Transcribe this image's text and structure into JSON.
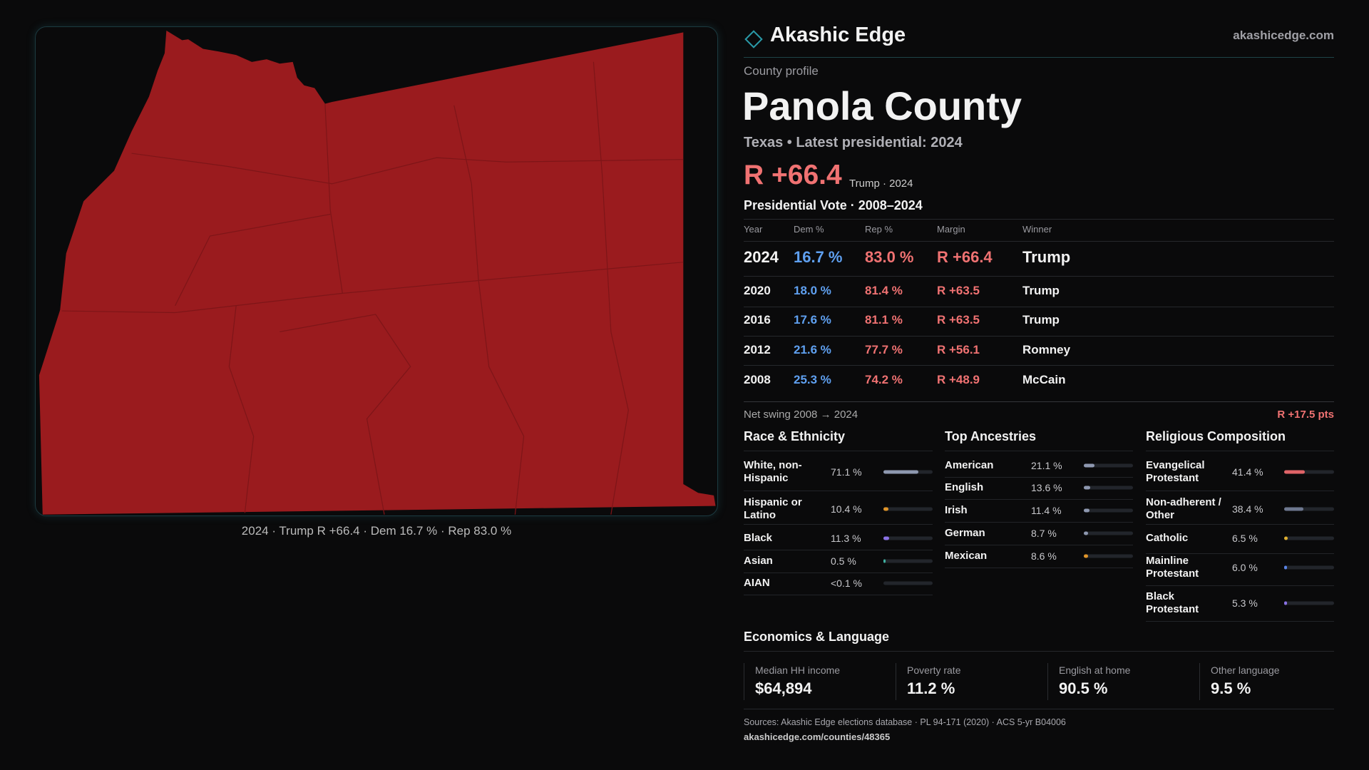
{
  "brand": {
    "name": "Akashic Edge",
    "url": "akashicedge.com"
  },
  "map": {
    "caption": "2024 · Trump R +66.4 · Dem 16.7 % · Rep 83.0 %"
  },
  "profile": {
    "kicker": "County profile",
    "title": "Panola County",
    "subtitle": "Texas • Latest presidential: 2024",
    "margin": "R +66.4",
    "margin_note": "Trump · 2024"
  },
  "votes": {
    "title": "Presidential Vote · 2008–2024",
    "columns": [
      "Year",
      "Dem %",
      "Rep %",
      "Margin",
      "Winner"
    ],
    "rows": [
      [
        "2024",
        "16.7 %",
        "83.0 %",
        "R +66.4",
        "Trump"
      ],
      [
        "2020",
        "18.0 %",
        "81.4 %",
        "R +63.5",
        "Trump"
      ],
      [
        "2016",
        "17.6 %",
        "81.1 %",
        "R +63.5",
        "Trump"
      ],
      [
        "2012",
        "21.6 %",
        "77.7 %",
        "R +56.1",
        "Romney"
      ],
      [
        "2008",
        "25.3 %",
        "74.2 %",
        "R +48.9",
        "McCain"
      ]
    ],
    "swing_label": "Net swing 2008 → 2024",
    "swing_value": "R +17.5 pts"
  },
  "race": {
    "title": "Race & Ethnicity",
    "rows": [
      {
        "label": "White, non-Hispanic",
        "value": 71.1,
        "value_label": "71.1 %",
        "color": "#8e98b0"
      },
      {
        "label": "Hispanic or Latino",
        "value": 10.4,
        "value_label": "10.4 %",
        "color": "#e0952a"
      },
      {
        "label": "Black",
        "value": 11.3,
        "value_label": "11.3 %",
        "color": "#8a72e6"
      },
      {
        "label": "Asian",
        "value": 0.5,
        "value_label": "0.5 %",
        "color": "#3fb0a0"
      },
      {
        "label": "AIAN",
        "value": 0,
        "value_label": "<0.1 %",
        "color": "#c07040"
      }
    ]
  },
  "ancestry": {
    "title": "Top Ancestries",
    "rows": [
      {
        "label": "American",
        "value": 21.1,
        "value_label": "21.1 %",
        "color": "#8e98b0"
      },
      {
        "label": "English",
        "value": 13.6,
        "value_label": "13.6 %",
        "color": "#8e98b0"
      },
      {
        "label": "Irish",
        "value": 11.4,
        "value_label": "11.4 %",
        "color": "#8e98b0"
      },
      {
        "label": "German",
        "value": 8.7,
        "value_label": "8.7 %",
        "color": "#8e98b0"
      },
      {
        "label": "Mexican",
        "value": 8.6,
        "value_label": "8.6 %",
        "color": "#e0952a"
      }
    ]
  },
  "religion": {
    "title": "Religious Composition",
    "rows": [
      {
        "label": "Evangelical Protestant",
        "value": 41.4,
        "value_label": "41.4 %",
        "color": "#e06468"
      },
      {
        "label": "Non-adherent / Other",
        "value": 38.4,
        "value_label": "38.4 %",
        "color": "#6e7890"
      },
      {
        "label": "Catholic",
        "value": 6.5,
        "value_label": "6.5 %",
        "color": "#e0b030"
      },
      {
        "label": "Mainline Protestant",
        "value": 6.0,
        "value_label": "6.0 %",
        "color": "#5a84e6"
      },
      {
        "label": "Black Protestant",
        "value": 5.3,
        "value_label": "5.3 %",
        "color": "#8a72e6"
      }
    ]
  },
  "economics": {
    "title": "Economics & Language",
    "cards": [
      {
        "label": "Median HH income",
        "value": "$64,894"
      },
      {
        "label": "Poverty rate",
        "value": "11.2 %"
      },
      {
        "label": "English at home",
        "value": "90.5 %"
      },
      {
        "label": "Other language",
        "value": "9.5 %"
      }
    ]
  },
  "sources": {
    "text": "Sources: Akashic Edge elections database · PL 94-171 (2020) · ACS 5-yr B04006",
    "url": "akashicedge.com/counties/48365"
  }
}
